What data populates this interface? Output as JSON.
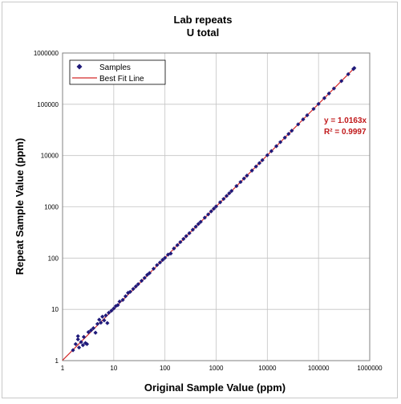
{
  "colors": {
    "marker": "#1f1a7a",
    "fit_line": "#d42a2a",
    "annotation": "#c0181a",
    "grid": "#c4c4c4"
  },
  "chart_data": {
    "type": "scatter",
    "title": "Lab repeats",
    "subtitle": "U total",
    "xlabel": "Original Sample Value (ppm)",
    "ylabel": "Repeat Sample Value (ppm)",
    "x_scale": "log",
    "y_scale": "log",
    "xlim": [
      1,
      1000000
    ],
    "ylim": [
      1,
      1000000
    ],
    "x_ticks": [
      "1",
      "10",
      "100",
      "1000",
      "10000",
      "100000",
      "1000000"
    ],
    "y_ticks": [
      "1",
      "10",
      "100",
      "1000",
      "10000",
      "100000",
      "1000000"
    ],
    "grid": true,
    "legend": {
      "placement": "top-left",
      "items": [
        {
          "label": "Samples",
          "symbol": "diamond-marker"
        },
        {
          "label": "Best Fit Line",
          "symbol": "line"
        }
      ]
    },
    "annotations": [
      "y = 1.0163x",
      "R² = 0.9997"
    ],
    "fit": {
      "slope": 1.0163,
      "r2": 0.9997
    },
    "series": [
      {
        "name": "Samples",
        "points": [
          [
            1.6,
            1.6
          ],
          [
            1.8,
            2.1
          ],
          [
            2.0,
            2.6
          ],
          [
            2.0,
            3.0
          ],
          [
            2.1,
            1.8
          ],
          [
            2.3,
            2.3
          ],
          [
            2.5,
            2.0
          ],
          [
            2.6,
            2.9
          ],
          [
            2.8,
            2.2
          ],
          [
            3.0,
            2.1
          ],
          [
            3.2,
            3.6
          ],
          [
            3.6,
            3.9
          ],
          [
            4.0,
            4.3
          ],
          [
            4.4,
            3.5
          ],
          [
            4.8,
            5.2
          ],
          [
            5.2,
            6.3
          ],
          [
            5.6,
            5.5
          ],
          [
            6.0,
            7.2
          ],
          [
            6.5,
            6.1
          ],
          [
            7.0,
            7.6
          ],
          [
            7.5,
            5.4
          ],
          [
            8.0,
            8.6
          ],
          [
            9.0,
            9.4
          ],
          [
            10,
            10.4
          ],
          [
            11,
            11.6
          ],
          [
            12,
            12.1
          ],
          [
            13,
            14.2
          ],
          [
            15,
            15.3
          ],
          [
            17,
            18.0
          ],
          [
            19,
            21
          ],
          [
            21,
            22
          ],
          [
            24,
            25
          ],
          [
            27,
            28
          ],
          [
            30,
            31
          ],
          [
            35,
            36
          ],
          [
            40,
            41
          ],
          [
            45,
            47
          ],
          [
            50,
            51
          ],
          [
            60,
            62
          ],
          [
            70,
            73
          ],
          [
            80,
            82
          ],
          [
            90,
            92
          ],
          [
            100,
            101
          ],
          [
            115,
            117
          ],
          [
            130,
            123
          ],
          [
            150,
            154
          ],
          [
            175,
            179
          ],
          [
            200,
            205
          ],
          [
            230,
            236
          ],
          [
            260,
            268
          ],
          [
            300,
            306
          ],
          [
            350,
            358
          ],
          [
            400,
            410
          ],
          [
            450,
            462
          ],
          [
            500,
            510
          ],
          [
            600,
            615
          ],
          [
            700,
            712
          ],
          [
            800,
            816
          ],
          [
            900,
            918
          ],
          [
            1000,
            1020
          ],
          [
            1200,
            1225
          ],
          [
            1400,
            1425
          ],
          [
            1600,
            1630
          ],
          [
            1800,
            1835
          ],
          [
            2000,
            2040
          ],
          [
            2500,
            2540
          ],
          [
            3000,
            3050
          ],
          [
            3500,
            3560
          ],
          [
            4000,
            4060
          ],
          [
            5000,
            5090
          ],
          [
            6000,
            6110
          ],
          [
            7000,
            7120
          ],
          [
            8000,
            8140
          ],
          [
            10000,
            10170
          ],
          [
            12000,
            12200
          ],
          [
            15000,
            15250
          ],
          [
            18000,
            18300
          ],
          [
            22000,
            22350
          ],
          [
            26000,
            26400
          ],
          [
            30000,
            30500
          ],
          [
            40000,
            40650
          ],
          [
            50000,
            50800
          ],
          [
            60000,
            61000
          ],
          [
            80000,
            81300
          ],
          [
            100000,
            101600
          ],
          [
            130000,
            132100
          ],
          [
            160000,
            162600
          ],
          [
            200000,
            203300
          ],
          [
            280000,
            284600
          ],
          [
            380000,
            386200
          ],
          [
            480000,
            487800
          ],
          [
            500000,
            508000
          ]
        ]
      }
    ]
  }
}
